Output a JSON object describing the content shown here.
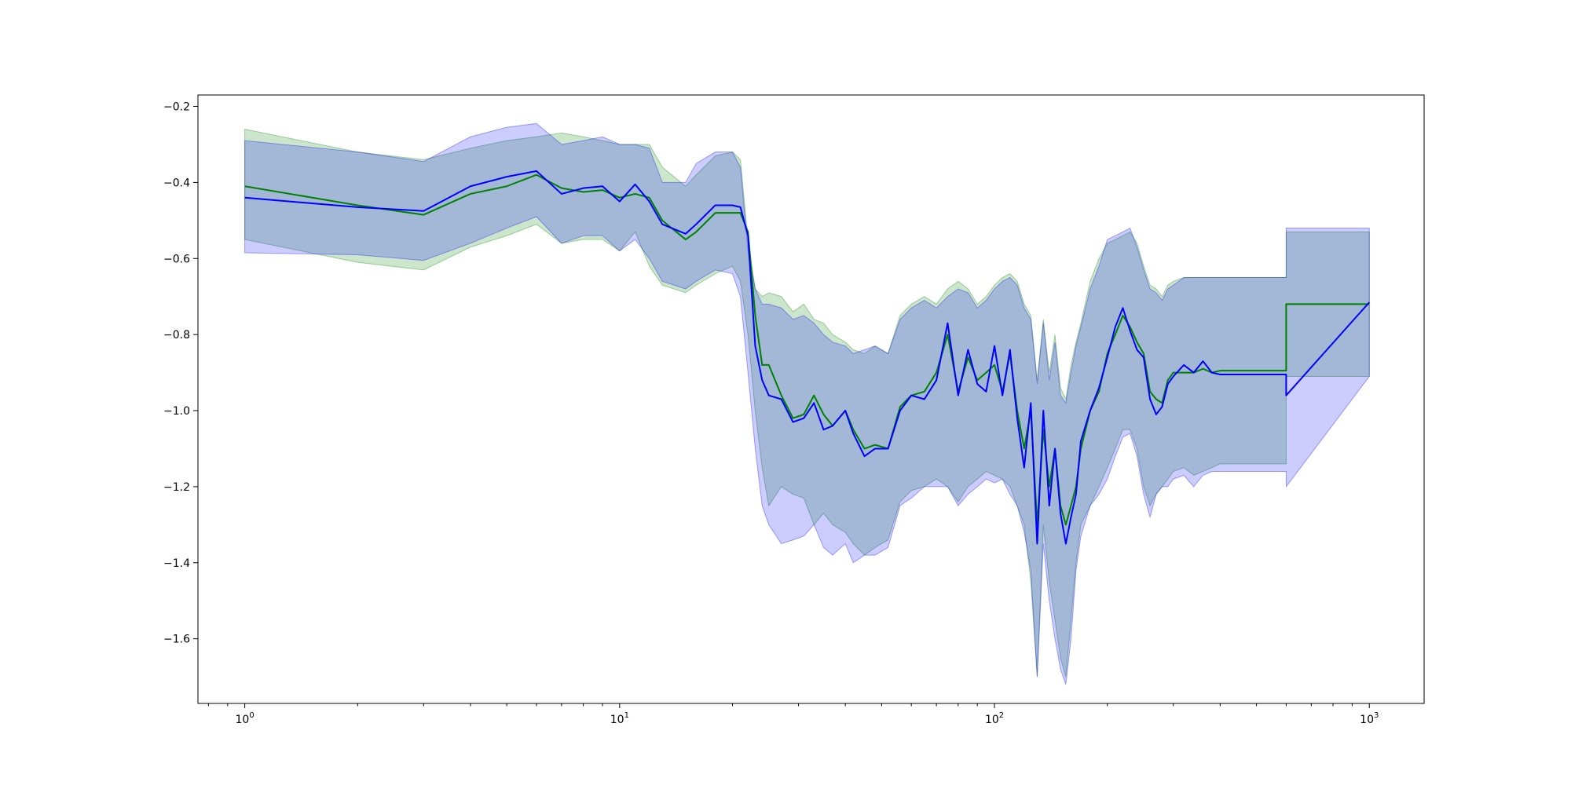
{
  "chart_data": {
    "type": "line",
    "title": "",
    "xlabel": "",
    "ylabel": "",
    "x_scale": "log",
    "xlim": [
      0.75,
      1400
    ],
    "ylim": [
      -1.77,
      -0.17
    ],
    "grid": false,
    "legend": "none",
    "x_ticks": [
      {
        "value": 1,
        "base": "10",
        "exp": "0"
      },
      {
        "value": 10,
        "base": "10",
        "exp": "1"
      },
      {
        "value": 100,
        "base": "10",
        "exp": "2"
      },
      {
        "value": 1000,
        "base": "10",
        "exp": "3"
      }
    ],
    "y_ticks": [
      {
        "value": -0.2,
        "label": "−0.2"
      },
      {
        "value": -0.4,
        "label": "−0.4"
      },
      {
        "value": -0.6,
        "label": "−0.6"
      },
      {
        "value": -0.8,
        "label": "−0.8"
      },
      {
        "value": -1.0,
        "label": "−1.0"
      },
      {
        "value": -1.2,
        "label": "−1.2"
      },
      {
        "value": -1.4,
        "label": "−1.4"
      },
      {
        "value": -1.6,
        "label": "−1.6"
      }
    ],
    "series": [
      {
        "color": "#008000",
        "band_color": "#008000",
        "band_opacity": 0.2,
        "x": [
          1,
          2,
          3,
          4,
          5,
          6,
          7,
          8,
          9,
          10,
          11,
          12,
          13,
          15,
          16,
          18,
          20,
          21,
          22,
          23,
          24,
          25,
          27,
          29,
          31,
          33,
          35,
          37,
          40,
          42,
          45,
          48,
          52,
          56,
          60,
          65,
          70,
          75,
          80,
          85,
          90,
          95,
          100,
          105,
          110,
          115,
          120,
          125,
          130,
          135,
          140,
          145,
          150,
          155,
          160,
          165,
          170,
          180,
          190,
          200,
          210,
          220,
          230,
          240,
          250,
          260,
          270,
          280,
          290,
          300,
          320,
          340,
          360,
          380,
          400,
          600,
          600.001,
          1000
        ],
        "y": [
          -0.41,
          -0.46,
          -0.485,
          -0.43,
          -0.41,
          -0.38,
          -0.415,
          -0.425,
          -0.42,
          -0.44,
          -0.43,
          -0.44,
          -0.5,
          -0.55,
          -0.53,
          -0.48,
          -0.48,
          -0.48,
          -0.53,
          -0.75,
          -0.88,
          -0.88,
          -0.96,
          -1.02,
          -1.01,
          -0.96,
          -1.01,
          -1.04,
          -1.0,
          -1.05,
          -1.1,
          -1.09,
          -1.1,
          -0.99,
          -0.96,
          -0.95,
          -0.9,
          -0.8,
          -0.95,
          -0.86,
          -0.92,
          -0.9,
          -0.88,
          -0.95,
          -0.85,
          -1.0,
          -1.1,
          -1.0,
          -1.3,
          -1.05,
          -1.2,
          -1.1,
          -1.25,
          -1.3,
          -1.25,
          -1.2,
          -1.1,
          -1.0,
          -0.95,
          -0.85,
          -0.8,
          -0.75,
          -0.78,
          -0.82,
          -0.85,
          -0.95,
          -0.97,
          -0.98,
          -0.92,
          -0.9,
          -0.9,
          -0.9,
          -0.89,
          -0.9,
          -0.895,
          -0.895,
          -0.72,
          -0.72
        ],
        "lower": [
          -0.55,
          -0.61,
          -0.63,
          -0.57,
          -0.54,
          -0.51,
          -0.56,
          -0.55,
          -0.55,
          -0.58,
          -0.53,
          -0.62,
          -0.67,
          -0.69,
          -0.67,
          -0.64,
          -0.62,
          -0.66,
          -0.8,
          -1.0,
          -1.15,
          -1.25,
          -1.2,
          -1.22,
          -1.23,
          -1.3,
          -1.27,
          -1.3,
          -1.32,
          -1.35,
          -1.38,
          -1.36,
          -1.34,
          -1.24,
          -1.21,
          -1.2,
          -1.18,
          -1.2,
          -1.24,
          -1.2,
          -1.18,
          -1.16,
          -1.17,
          -1.18,
          -1.2,
          -1.25,
          -1.3,
          -1.45,
          -1.7,
          -1.3,
          -1.45,
          -1.55,
          -1.65,
          -1.7,
          -1.55,
          -1.4,
          -1.3,
          -1.25,
          -1.2,
          -1.15,
          -1.1,
          -1.05,
          -1.05,
          -1.1,
          -1.2,
          -1.25,
          -1.22,
          -1.2,
          -1.18,
          -1.16,
          -1.15,
          -1.17,
          -1.16,
          -1.15,
          -1.14,
          -1.14,
          -0.91,
          -0.91
        ],
        "upper": [
          -0.26,
          -0.32,
          -0.34,
          -0.31,
          -0.29,
          -0.28,
          -0.27,
          -0.28,
          -0.29,
          -0.3,
          -0.3,
          -0.3,
          -0.36,
          -0.41,
          -0.38,
          -0.33,
          -0.32,
          -0.34,
          -0.55,
          -0.68,
          -0.7,
          -0.69,
          -0.7,
          -0.74,
          -0.72,
          -0.76,
          -0.77,
          -0.8,
          -0.82,
          -0.84,
          -0.85,
          -0.83,
          -0.85,
          -0.75,
          -0.72,
          -0.7,
          -0.72,
          -0.68,
          -0.66,
          -0.68,
          -0.72,
          -0.7,
          -0.67,
          -0.65,
          -0.64,
          -0.66,
          -0.72,
          -0.75,
          -0.92,
          -0.76,
          -0.9,
          -0.8,
          -0.94,
          -0.97,
          -0.88,
          -0.82,
          -0.77,
          -0.66,
          -0.6,
          -0.56,
          -0.55,
          -0.54,
          -0.53,
          -0.56,
          -0.62,
          -0.67,
          -0.68,
          -0.7,
          -0.67,
          -0.66,
          -0.65,
          -0.65,
          -0.65,
          -0.65,
          -0.65,
          -0.65,
          -0.53,
          -0.53
        ]
      },
      {
        "color": "#0000ff",
        "band_color": "#0000ff",
        "band_opacity": 0.2,
        "x": [
          1,
          2,
          3,
          4,
          5,
          6,
          7,
          8,
          9,
          10,
          11,
          12,
          13,
          15,
          16,
          18,
          20,
          21,
          22,
          23,
          24,
          25,
          27,
          29,
          31,
          33,
          35,
          37,
          40,
          42,
          45,
          48,
          52,
          56,
          60,
          65,
          70,
          75,
          80,
          85,
          90,
          95,
          100,
          105,
          110,
          115,
          120,
          125,
          130,
          135,
          140,
          145,
          150,
          155,
          160,
          165,
          170,
          180,
          190,
          200,
          210,
          220,
          230,
          240,
          250,
          260,
          270,
          280,
          290,
          300,
          320,
          340,
          360,
          380,
          400,
          600,
          600.001,
          1000
        ],
        "y": [
          -0.44,
          -0.465,
          -0.475,
          -0.41,
          -0.385,
          -0.37,
          -0.43,
          -0.415,
          -0.41,
          -0.45,
          -0.405,
          -0.45,
          -0.51,
          -0.535,
          -0.51,
          -0.46,
          -0.46,
          -0.465,
          -0.54,
          -0.83,
          -0.92,
          -0.96,
          -0.97,
          -1.03,
          -1.02,
          -0.98,
          -1.05,
          -1.04,
          -1.0,
          -1.06,
          -1.12,
          -1.1,
          -1.1,
          -1.0,
          -0.96,
          -0.97,
          -0.92,
          -0.77,
          -0.96,
          -0.84,
          -0.93,
          -0.95,
          -0.83,
          -0.96,
          -0.84,
          -1.02,
          -1.15,
          -0.98,
          -1.35,
          -1.0,
          -1.25,
          -1.1,
          -1.27,
          -1.35,
          -1.28,
          -1.22,
          -1.08,
          -1.0,
          -0.94,
          -0.86,
          -0.78,
          -0.73,
          -0.79,
          -0.84,
          -0.86,
          -0.97,
          -1.01,
          -0.99,
          -0.93,
          -0.91,
          -0.88,
          -0.9,
          -0.87,
          -0.9,
          -0.905,
          -0.905,
          -0.96,
          -0.715
        ],
        "lower": [
          -0.585,
          -0.59,
          -0.605,
          -0.56,
          -0.52,
          -0.49,
          -0.56,
          -0.54,
          -0.54,
          -0.58,
          -0.55,
          -0.6,
          -0.66,
          -0.68,
          -0.66,
          -0.63,
          -0.64,
          -0.7,
          -0.9,
          -1.1,
          -1.25,
          -1.3,
          -1.35,
          -1.34,
          -1.33,
          -1.3,
          -1.36,
          -1.38,
          -1.35,
          -1.4,
          -1.38,
          -1.38,
          -1.36,
          -1.25,
          -1.23,
          -1.2,
          -1.2,
          -1.2,
          -1.25,
          -1.22,
          -1.2,
          -1.18,
          -1.19,
          -1.18,
          -1.22,
          -1.25,
          -1.32,
          -1.42,
          -1.7,
          -1.35,
          -1.5,
          -1.6,
          -1.68,
          -1.72,
          -1.6,
          -1.42,
          -1.33,
          -1.25,
          -1.22,
          -1.18,
          -1.12,
          -1.07,
          -1.06,
          -1.12,
          -1.22,
          -1.28,
          -1.22,
          -1.2,
          -1.2,
          -1.18,
          -1.17,
          -1.2,
          -1.17,
          -1.16,
          -1.16,
          -1.16,
          -1.2,
          -0.91
        ],
        "upper": [
          -0.29,
          -0.32,
          -0.345,
          -0.28,
          -0.255,
          -0.245,
          -0.3,
          -0.29,
          -0.28,
          -0.3,
          -0.3,
          -0.31,
          -0.4,
          -0.4,
          -0.35,
          -0.32,
          -0.32,
          -0.36,
          -0.58,
          -0.68,
          -0.72,
          -0.72,
          -0.73,
          -0.76,
          -0.75,
          -0.77,
          -0.8,
          -0.82,
          -0.83,
          -0.85,
          -0.84,
          -0.83,
          -0.85,
          -0.76,
          -0.73,
          -0.71,
          -0.73,
          -0.7,
          -0.68,
          -0.69,
          -0.73,
          -0.71,
          -0.68,
          -0.66,
          -0.65,
          -0.67,
          -0.73,
          -0.76,
          -0.93,
          -0.77,
          -0.92,
          -0.82,
          -0.96,
          -0.98,
          -0.9,
          -0.83,
          -0.78,
          -0.68,
          -0.62,
          -0.55,
          -0.54,
          -0.53,
          -0.52,
          -0.57,
          -0.63,
          -0.68,
          -0.69,
          -0.71,
          -0.68,
          -0.67,
          -0.65,
          -0.65,
          -0.65,
          -0.65,
          -0.65,
          -0.65,
          -0.52,
          -0.52
        ]
      }
    ]
  }
}
